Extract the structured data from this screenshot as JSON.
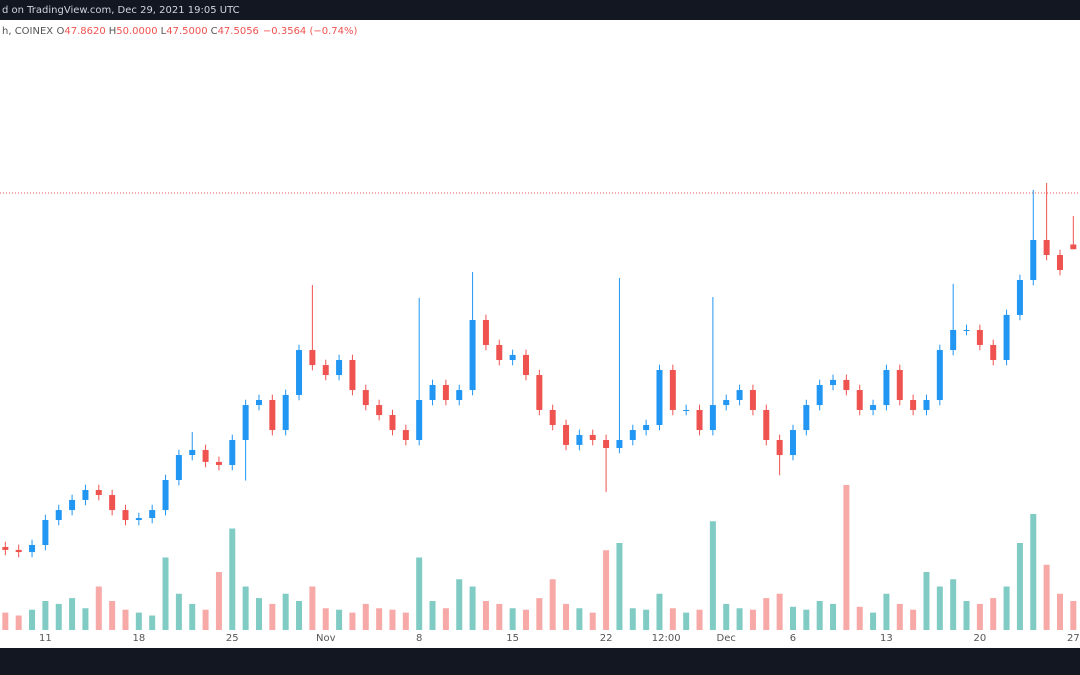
{
  "header": "d on TradingView.com, Dec 29, 2021 19:05 UTC",
  "legend": {
    "symbol": "h, COINEX",
    "fields": [
      {
        "key": "O",
        "text": "47.8620"
      },
      {
        "key": "H",
        "text": "50.0000"
      },
      {
        "key": "L",
        "text": "47.5000"
      },
      {
        "key": "C",
        "text": "47.5056"
      }
    ],
    "change": "−0.3564 (−0.74%)"
  },
  "chart_data": {
    "type": "candlestick",
    "up_color": "#2196f3",
    "down_color": "#ef5350",
    "volume_up_color": "#80cbc4",
    "volume_down_color": "#f7a9a7",
    "price_line_color": "#ef5350",
    "x": [
      -3,
      -2,
      -1,
      0,
      1,
      2,
      3,
      4,
      5,
      6,
      7,
      8,
      9,
      10,
      11,
      12,
      13,
      14,
      15,
      16,
      17,
      18,
      19,
      20,
      21,
      22,
      23,
      24,
      25,
      26,
      27,
      28,
      29,
      30,
      31,
      32,
      33,
      34,
      35,
      36,
      37,
      38,
      39,
      40,
      41,
      42,
      43,
      44,
      45,
      46,
      47,
      48,
      49,
      50,
      51,
      52,
      53,
      54,
      55,
      56,
      57,
      58,
      59,
      60,
      61,
      62,
      63,
      64,
      65,
      66,
      67,
      68,
      69,
      70,
      71,
      72,
      73,
      74,
      75,
      76,
      77
    ],
    "open": [
      25.1,
      24.88,
      24.72,
      25.25,
      27.13,
      27.88,
      28.64,
      29.39,
      29.01,
      27.88,
      27.13,
      27.28,
      27.88,
      30.14,
      32.02,
      32.4,
      31.5,
      31.27,
      33.15,
      35.78,
      36.16,
      33.9,
      36.54,
      39.92,
      38.79,
      38.04,
      39.17,
      36.91,
      35.78,
      35.03,
      33.9,
      33.15,
      36.16,
      37.29,
      36.16,
      36.91,
      42.18,
      40.3,
      39.17,
      39.55,
      38.04,
      35.41,
      34.28,
      32.78,
      33.53,
      33.15,
      32.55,
      33.15,
      33.9,
      34.28,
      38.42,
      35.41,
      35.41,
      33.9,
      35.78,
      36.16,
      36.91,
      35.41,
      33.15,
      32.02,
      33.9,
      35.78,
      37.29,
      37.67,
      36.91,
      35.41,
      35.78,
      38.42,
      36.16,
      35.41,
      36.16,
      39.92,
      41.43,
      41.43,
      40.3,
      39.17,
      42.56,
      45.19,
      48.2,
      47.07,
      47.862
    ],
    "high": [
      25.5,
      25.28,
      25.65,
      27.53,
      28.28,
      29.04,
      29.79,
      29.79,
      29.41,
      28.28,
      27.68,
      28.28,
      30.54,
      32.42,
      33.75,
      32.8,
      31.9,
      33.55,
      36.18,
      36.56,
      36.56,
      36.94,
      40.32,
      44.81,
      39.19,
      39.57,
      39.57,
      37.31,
      36.18,
      35.43,
      34.3,
      43.84,
      37.69,
      37.69,
      37.31,
      45.79,
      42.58,
      40.7,
      39.95,
      39.95,
      38.44,
      35.81,
      34.68,
      33.93,
      33.93,
      33.55,
      45.34,
      34.3,
      34.68,
      38.82,
      38.82,
      35.81,
      35.81,
      43.91,
      36.56,
      37.31,
      37.31,
      35.81,
      33.55,
      34.3,
      36.18,
      37.69,
      38.07,
      38.07,
      37.31,
      36.18,
      38.82,
      38.82,
      36.56,
      36.56,
      40.32,
      44.9,
      41.83,
      41.83,
      40.7,
      42.96,
      45.59,
      51.96,
      52.49,
      47.47,
      50
    ],
    "low": [
      24.48,
      24.32,
      24.32,
      24.85,
      26.73,
      27.48,
      28.24,
      28.61,
      27.48,
      26.73,
      26.73,
      26.88,
      27.48,
      29.74,
      31.62,
      31.1,
      30.87,
      30.87,
      30.1,
      35.38,
      33.5,
      33.5,
      36.14,
      38.39,
      37.64,
      37.64,
      36.51,
      35.38,
      34.63,
      33.5,
      32.75,
      32.75,
      35.76,
      35.76,
      35.76,
      36.51,
      39.9,
      38.77,
      38.77,
      37.64,
      35.01,
      33.88,
      32.38,
      32.38,
      32.75,
      29.24,
      32.15,
      32.75,
      33.5,
      33.88,
      35.01,
      35.01,
      33.5,
      33.5,
      35.38,
      35.76,
      35.01,
      32.75,
      30.5,
      31.62,
      33.5,
      35.38,
      36.89,
      36.51,
      35.01,
      35.01,
      35.38,
      35.76,
      35.01,
      35.01,
      35.76,
      39.52,
      41.03,
      39.9,
      38.77,
      38.77,
      42.16,
      44.79,
      46.67,
      45.54,
      47.5
    ],
    "close": [
      24.88,
      24.72,
      25.25,
      27.13,
      27.88,
      28.64,
      29.39,
      29.01,
      27.88,
      27.13,
      27.28,
      27.88,
      30.14,
      32.02,
      32.4,
      31.5,
      31.27,
      33.15,
      35.78,
      36.16,
      33.9,
      36.54,
      39.92,
      38.79,
      38.04,
      39.17,
      36.91,
      35.78,
      35.03,
      33.9,
      33.15,
      36.16,
      37.29,
      36.16,
      36.91,
      42.18,
      40.3,
      39.17,
      39.55,
      38.04,
      35.41,
      34.28,
      32.78,
      33.53,
      33.15,
      32.55,
      33.15,
      33.9,
      34.28,
      38.42,
      35.41,
      35.41,
      33.9,
      35.78,
      36.16,
      36.91,
      35.41,
      33.15,
      32.02,
      33.9,
      35.78,
      37.29,
      37.67,
      36.91,
      35.41,
      35.78,
      38.42,
      36.16,
      35.41,
      36.16,
      39.92,
      41.43,
      41.43,
      40.3,
      39.17,
      42.56,
      45.19,
      48.2,
      47.07,
      45.94,
      47.5056
    ],
    "volume": [
      12,
      10,
      14,
      20,
      18,
      22,
      15,
      30,
      20,
      14,
      12,
      10,
      50,
      25,
      18,
      14,
      40,
      70,
      30,
      22,
      18,
      25,
      20,
      30,
      15,
      14,
      12,
      18,
      15,
      14,
      12,
      50,
      20,
      15,
      35,
      30,
      20,
      18,
      15,
      14,
      22,
      35,
      18,
      15,
      12,
      55,
      60,
      15,
      14,
      25,
      15,
      12,
      14,
      75,
      18,
      15,
      14,
      22,
      25,
      16,
      14,
      20,
      18,
      100,
      16,
      12,
      25,
      18,
      14,
      40,
      30,
      35,
      20,
      18,
      22,
      30,
      60,
      80,
      45,
      25,
      20
    ],
    "price_line": 51.74,
    "xlim": [
      -3.4,
      77.5
    ],
    "ylim": [
      17.5,
      64
    ],
    "volume_lim": [
      0,
      100
    ],
    "xticks": [
      {
        "value": 0,
        "label": "11"
      },
      {
        "value": 7,
        "label": "18"
      },
      {
        "value": 14,
        "label": "25"
      },
      {
        "value": 21,
        "label": "Nov"
      },
      {
        "value": 28,
        "label": "8"
      },
      {
        "value": 35,
        "label": "15"
      },
      {
        "value": 42,
        "label": "22"
      },
      {
        "value": 46.5,
        "label": "12:00"
      },
      {
        "value": 51,
        "label": "Dec"
      },
      {
        "value": 56,
        "label": "6"
      },
      {
        "value": 63,
        "label": "13"
      },
      {
        "value": 70,
        "label": "20"
      },
      {
        "value": 77,
        "label": "27"
      }
    ]
  }
}
